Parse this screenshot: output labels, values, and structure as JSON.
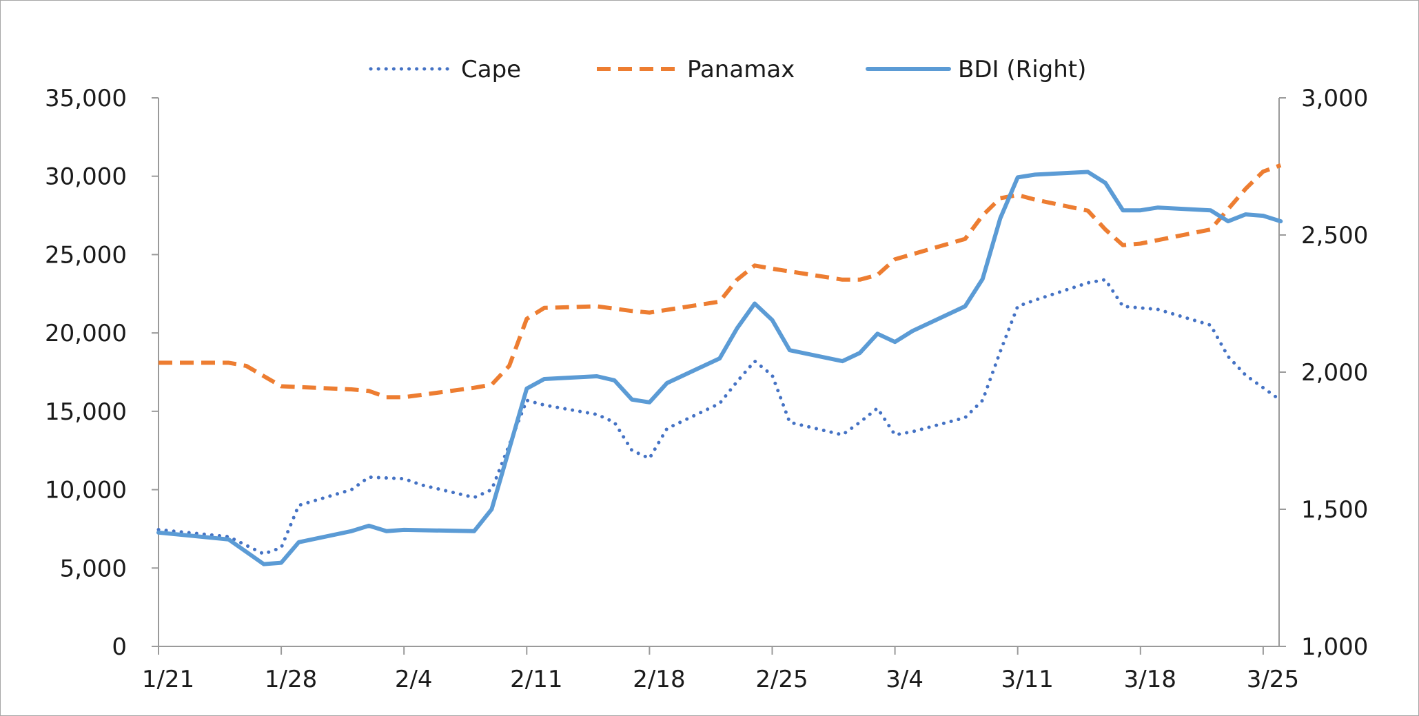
{
  "chart_data": {
    "type": "line",
    "title": "",
    "xlabel": "",
    "ylabel": "",
    "x_ticks": [
      "1/21",
      "1/28",
      "2/4",
      "2/11",
      "2/18",
      "2/25",
      "3/4",
      "3/11",
      "3/18",
      "3/25"
    ],
    "y_left": {
      "ylim": [
        0,
        35000
      ],
      "ticks": [
        0,
        5000,
        10000,
        15000,
        20000,
        25000,
        30000,
        35000
      ],
      "tick_labels": [
        "0",
        "5,000",
        "10,000",
        "15,000",
        "20,000",
        "25,000",
        "30,000",
        "35,000"
      ]
    },
    "y_right": {
      "ylim": [
        1000,
        3000
      ],
      "ticks": [
        1000,
        1500,
        2000,
        2500,
        3000
      ],
      "tick_labels": [
        "1,000",
        "1,500",
        "2,000",
        "2,500",
        "3,000"
      ]
    },
    "grid": false,
    "legend_position": "top-center",
    "series": [
      {
        "name": "Cape",
        "axis": "left",
        "color": "#4472c4",
        "style": "dotted",
        "points": [
          [
            "1/21",
            7450
          ],
          [
            "1/25",
            7000
          ],
          [
            "1/27",
            5900
          ],
          [
            "1/28",
            6300
          ],
          [
            "1/29",
            9000
          ],
          [
            "2/1",
            10000
          ],
          [
            "2/2",
            10800
          ],
          [
            "2/4",
            10700
          ],
          [
            "2/5",
            10300
          ],
          [
            "2/8",
            9500
          ],
          [
            "2/9",
            10000
          ],
          [
            "2/11",
            15700
          ],
          [
            "2/12",
            15400
          ],
          [
            "2/15",
            14800
          ],
          [
            "2/16",
            14300
          ],
          [
            "2/17",
            12500
          ],
          [
            "2/18",
            12000
          ],
          [
            "2/19",
            13900
          ],
          [
            "2/22",
            15500
          ],
          [
            "2/23",
            16900
          ],
          [
            "2/24",
            18200
          ],
          [
            "2/25",
            17300
          ],
          [
            "2/26",
            14300
          ],
          [
            "3/1",
            13500
          ],
          [
            "3/2",
            14300
          ],
          [
            "3/3",
            15200
          ],
          [
            "3/4",
            13500
          ],
          [
            "3/5",
            13700
          ],
          [
            "3/8",
            14600
          ],
          [
            "3/9",
            15700
          ],
          [
            "3/10",
            18800
          ],
          [
            "3/11",
            21700
          ],
          [
            "3/12",
            22100
          ],
          [
            "3/15",
            23200
          ],
          [
            "3/16",
            23400
          ],
          [
            "3/17",
            21700
          ],
          [
            "3/18",
            21600
          ],
          [
            "3/19",
            21500
          ],
          [
            "3/22",
            20500
          ],
          [
            "3/23",
            18500
          ],
          [
            "3/24",
            17300
          ],
          [
            "3/25",
            16500
          ],
          [
            "3/26",
            15700
          ]
        ]
      },
      {
        "name": "Panamax",
        "axis": "left",
        "color": "#ed7d31",
        "style": "dashed",
        "points": [
          [
            "1/21",
            18100
          ],
          [
            "1/25",
            18100
          ],
          [
            "1/26",
            17900
          ],
          [
            "1/28",
            16600
          ],
          [
            "2/1",
            16400
          ],
          [
            "2/2",
            16300
          ],
          [
            "2/3",
            15900
          ],
          [
            "2/4",
            15900
          ],
          [
            "2/8",
            16500
          ],
          [
            "2/9",
            16700
          ],
          [
            "2/10",
            17900
          ],
          [
            "2/11",
            20900
          ],
          [
            "2/12",
            21600
          ],
          [
            "2/15",
            21700
          ],
          [
            "2/17",
            21400
          ],
          [
            "2/18",
            21300
          ],
          [
            "2/22",
            22000
          ],
          [
            "2/23",
            23400
          ],
          [
            "2/24",
            24300
          ],
          [
            "2/25",
            24100
          ],
          [
            "3/1",
            23400
          ],
          [
            "3/2",
            23400
          ],
          [
            "3/3",
            23700
          ],
          [
            "3/4",
            24700
          ],
          [
            "3/8",
            26000
          ],
          [
            "3/9",
            27500
          ],
          [
            "3/10",
            28600
          ],
          [
            "3/11",
            28800
          ],
          [
            "3/12",
            28500
          ],
          [
            "3/15",
            27800
          ],
          [
            "3/16",
            26600
          ],
          [
            "3/17",
            25600
          ],
          [
            "3/18",
            25700
          ],
          [
            "3/22",
            26600
          ],
          [
            "3/23",
            27900
          ],
          [
            "3/24",
            29200
          ],
          [
            "3/25",
            30300
          ],
          [
            "3/26",
            30700
          ]
        ]
      },
      {
        "name": "BDI (Right)",
        "axis": "right",
        "color": "#5b9bd5",
        "style": "solid",
        "points": [
          [
            "1/21",
            1415
          ],
          [
            "1/25",
            1390
          ],
          [
            "1/27",
            1300
          ],
          [
            "1/28",
            1305
          ],
          [
            "1/29",
            1380
          ],
          [
            "2/1",
            1420
          ],
          [
            "2/2",
            1440
          ],
          [
            "2/3",
            1420
          ],
          [
            "2/4",
            1425
          ],
          [
            "2/8",
            1420
          ],
          [
            "2/9",
            1500
          ],
          [
            "2/10",
            1720
          ],
          [
            "2/11",
            1940
          ],
          [
            "2/12",
            1975
          ],
          [
            "2/15",
            1985
          ],
          [
            "2/16",
            1970
          ],
          [
            "2/17",
            1900
          ],
          [
            "2/18",
            1890
          ],
          [
            "2/19",
            1960
          ],
          [
            "2/22",
            2050
          ],
          [
            "2/23",
            2160
          ],
          [
            "2/24",
            2250
          ],
          [
            "2/25",
            2190
          ],
          [
            "2/26",
            2080
          ],
          [
            "3/1",
            2040
          ],
          [
            "3/2",
            2070
          ],
          [
            "3/3",
            2140
          ],
          [
            "3/4",
            2110
          ],
          [
            "3/5",
            2150
          ],
          [
            "3/8",
            2240
          ],
          [
            "3/9",
            2340
          ],
          [
            "3/10",
            2560
          ],
          [
            "3/11",
            2710
          ],
          [
            "3/12",
            2720
          ],
          [
            "3/15",
            2730
          ],
          [
            "3/16",
            2690
          ],
          [
            "3/17",
            2590
          ],
          [
            "3/18",
            2590
          ],
          [
            "3/19",
            2600
          ],
          [
            "3/22",
            2590
          ],
          [
            "3/23",
            2550
          ],
          [
            "3/24",
            2575
          ],
          [
            "3/25",
            2570
          ],
          [
            "3/26",
            2550
          ]
        ]
      }
    ]
  }
}
